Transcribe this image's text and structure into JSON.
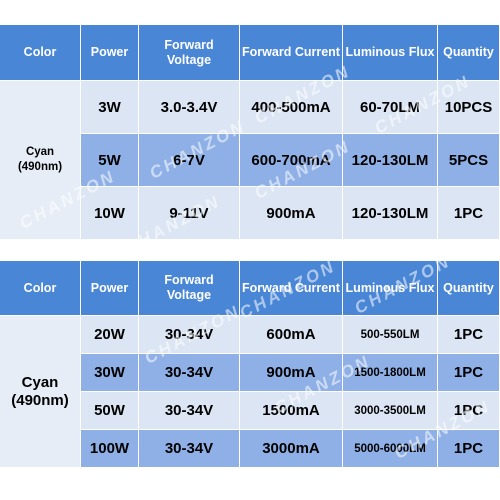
{
  "tables": [
    {
      "headers": {
        "color": "Color",
        "power": "Power",
        "voltage": "Forward Voltage",
        "current": "Forward Current",
        "flux": "Luminous Flux",
        "quantity": "Quantity"
      },
      "color_line1": "Cyan",
      "color_line2": "(490nm)",
      "rows": [
        {
          "power": "3W",
          "voltage": "3.0-3.4V",
          "current": "400-500mA",
          "flux": "60-70LM",
          "quantity": "10PCS"
        },
        {
          "power": "5W",
          "voltage": "6-7V",
          "current": "600-700mA",
          "flux": "120-130LM",
          "quantity": "5PCS"
        },
        {
          "power": "10W",
          "voltage": "9-11V",
          "current": "900mA",
          "flux": "120-130LM",
          "quantity": "1PC"
        }
      ]
    },
    {
      "headers": {
        "color": "Color",
        "power": "Power",
        "voltage": "Forward Voltage",
        "current": "Forward Current",
        "flux": "Luminous Flux",
        "quantity": "Quantity"
      },
      "color_line1": "Cyan",
      "color_line2": "(490nm)",
      "rows": [
        {
          "power": "20W",
          "voltage": "30-34V",
          "current": "600mA",
          "flux": "500-550LM",
          "quantity": "1PC"
        },
        {
          "power": "30W",
          "voltage": "30-34V",
          "current": "900mA",
          "flux": "1500-1800LM",
          "quantity": "1PC"
        },
        {
          "power": "50W",
          "voltage": "30-34V",
          "current": "1500mA",
          "flux": "3000-3500LM",
          "quantity": "1PC"
        },
        {
          "power": "100W",
          "voltage": "30-34V",
          "current": "3000mA",
          "flux": "5000-6000LM",
          "quantity": "1PC"
        }
      ]
    }
  ],
  "watermark": "CHANZON",
  "colors": {
    "header": "#4a86d6",
    "row_light": "#dbe5f3",
    "row_mid": "#8fb0e6",
    "color_cell": "#e6edf7"
  }
}
